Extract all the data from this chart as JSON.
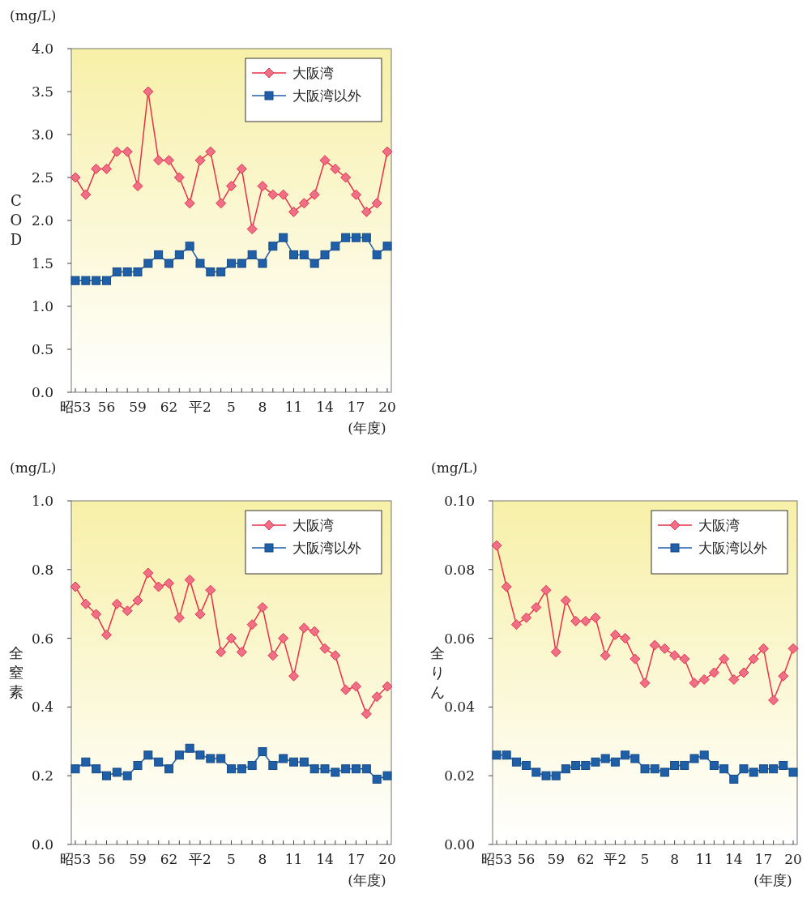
{
  "chart_data": [
    {
      "type": "line",
      "ylabel": "COD",
      "xlabel": "(年度)",
      "annotations": [
        "(mg/L)"
      ],
      "legend": "top right",
      "line_style": "solid",
      "categories": [
        "昭53",
        null,
        null,
        "56",
        null,
        null,
        "59",
        null,
        null,
        "62",
        null,
        null,
        "平2",
        null,
        null,
        "5",
        null,
        null,
        "8",
        null,
        null,
        "11",
        null,
        null,
        "14",
        null,
        null,
        "17",
        null,
        null,
        "20"
      ],
      "ylim": [
        0,
        4
      ],
      "yticks": [
        {
          "value": 0,
          "label": "0.0"
        },
        {
          "value": 0.5,
          "label": "0.5"
        },
        {
          "value": 1,
          "label": "1.0"
        },
        {
          "value": 1.5,
          "label": "1.5"
        },
        {
          "value": 2,
          "label": "2.0"
        },
        {
          "value": 2.5,
          "label": "2.5"
        },
        {
          "value": 3,
          "label": "3.0"
        },
        {
          "value": 3.5,
          "label": "3.5"
        },
        {
          "value": 4,
          "label": "4.0"
        }
      ],
      "series": [
        {
          "name": "大阪湾",
          "color": "#e8304a",
          "marker": "diamond",
          "values": [
            2.5,
            2.3,
            2.6,
            2.6,
            2.8,
            2.8,
            2.4,
            3.5,
            2.7,
            2.7,
            2.5,
            2.2,
            2.7,
            2.8,
            2.2,
            2.4,
            2.6,
            1.9,
            2.4,
            2.3,
            2.3,
            2.1,
            2.2,
            2.3,
            2.7,
            2.6,
            2.5,
            2.3,
            2.1,
            2.2,
            2.8
          ]
        },
        {
          "name": "大阪湾以外",
          "color": "#1f5fa8",
          "marker": "square",
          "values": [
            1.3,
            1.3,
            1.3,
            1.3,
            1.4,
            1.4,
            1.4,
            1.5,
            1.6,
            1.5,
            1.6,
            1.7,
            1.5,
            1.4,
            1.4,
            1.5,
            1.5,
            1.6,
            1.5,
            1.7,
            1.8,
            1.6,
            1.6,
            1.5,
            1.6,
            1.7,
            1.8,
            1.8,
            1.8,
            1.6,
            1.7
          ]
        }
      ]
    },
    {
      "type": "line",
      "ylabel": "全窒素",
      "xlabel": "(年度)",
      "annotations": [
        "(mg/L)"
      ],
      "legend": "top right",
      "line_style": "solid",
      "categories": [
        "昭53",
        null,
        null,
        "56",
        null,
        null,
        "59",
        null,
        null,
        "62",
        null,
        null,
        "平2",
        null,
        null,
        "5",
        null,
        null,
        "8",
        null,
        null,
        "11",
        null,
        null,
        "14",
        null,
        null,
        "17",
        null,
        null,
        "20"
      ],
      "ylim": [
        0,
        1
      ],
      "yticks": [
        {
          "value": 0,
          "label": "0.0"
        },
        {
          "value": 0.2,
          "label": "0.2"
        },
        {
          "value": 0.4,
          "label": "0.4"
        },
        {
          "value": 0.6,
          "label": "0.6"
        },
        {
          "value": 0.8,
          "label": "0.8"
        },
        {
          "value": 1,
          "label": "1.0"
        }
      ],
      "series": [
        {
          "name": "大阪湾",
          "color": "#e8304a",
          "marker": "diamond",
          "values": [
            0.75,
            0.7,
            0.67,
            0.61,
            0.7,
            0.68,
            0.71,
            0.79,
            0.75,
            0.76,
            0.66,
            0.77,
            0.67,
            0.74,
            0.56,
            0.6,
            0.56,
            0.64,
            0.69,
            0.55,
            0.6,
            0.49,
            0.63,
            0.62,
            0.57,
            0.55,
            0.45,
            0.46,
            0.38,
            0.43,
            0.46
          ]
        },
        {
          "name": "大阪湾以外",
          "color": "#1f5fa8",
          "marker": "square",
          "values": [
            0.22,
            0.24,
            0.22,
            0.2,
            0.21,
            0.2,
            0.23,
            0.26,
            0.24,
            0.22,
            0.26,
            0.28,
            0.26,
            0.25,
            0.25,
            0.22,
            0.22,
            0.23,
            0.27,
            0.23,
            0.25,
            0.24,
            0.24,
            0.22,
            0.22,
            0.21,
            0.22,
            0.22,
            0.22,
            0.19,
            0.2
          ]
        }
      ]
    },
    {
      "type": "line",
      "ylabel": "全りん",
      "xlabel": "(年度)",
      "annotations": [
        "(mg/L)"
      ],
      "legend": "top right",
      "line_style": "solid",
      "categories": [
        "昭53",
        null,
        null,
        "56",
        null,
        null,
        "59",
        null,
        null,
        "62",
        null,
        null,
        "平2",
        null,
        null,
        "5",
        null,
        null,
        "8",
        null,
        null,
        "11",
        null,
        null,
        "14",
        null,
        null,
        "17",
        null,
        null,
        "20"
      ],
      "ylim": [
        0,
        0.1
      ],
      "yticks": [
        {
          "value": 0,
          "label": "0.00"
        },
        {
          "value": 0.02,
          "label": "0.02"
        },
        {
          "value": 0.04,
          "label": "0.04"
        },
        {
          "value": 0.06,
          "label": "0.06"
        },
        {
          "value": 0.08,
          "label": "0.08"
        },
        {
          "value": 0.1,
          "label": "0.10"
        }
      ],
      "series": [
        {
          "name": "大阪湾",
          "color": "#e8304a",
          "marker": "diamond",
          "values": [
            0.087,
            0.075,
            0.064,
            0.066,
            0.069,
            0.074,
            0.056,
            0.071,
            0.065,
            0.065,
            0.066,
            0.055,
            0.061,
            0.06,
            0.054,
            0.047,
            0.058,
            0.057,
            0.055,
            0.054,
            0.047,
            0.048,
            0.05,
            0.054,
            0.048,
            0.05,
            0.054,
            0.057,
            0.042,
            0.049,
            0.057
          ]
        },
        {
          "name": "大阪湾以外",
          "color": "#1f5fa8",
          "marker": "square",
          "values": [
            0.026,
            0.026,
            0.024,
            0.023,
            0.021,
            0.02,
            0.02,
            0.022,
            0.023,
            0.023,
            0.024,
            0.025,
            0.024,
            0.026,
            0.025,
            0.022,
            0.022,
            0.021,
            0.023,
            0.023,
            0.025,
            0.026,
            0.023,
            0.022,
            0.019,
            0.022,
            0.021,
            0.022,
            0.022,
            0.023,
            0.021
          ]
        }
      ]
    }
  ]
}
